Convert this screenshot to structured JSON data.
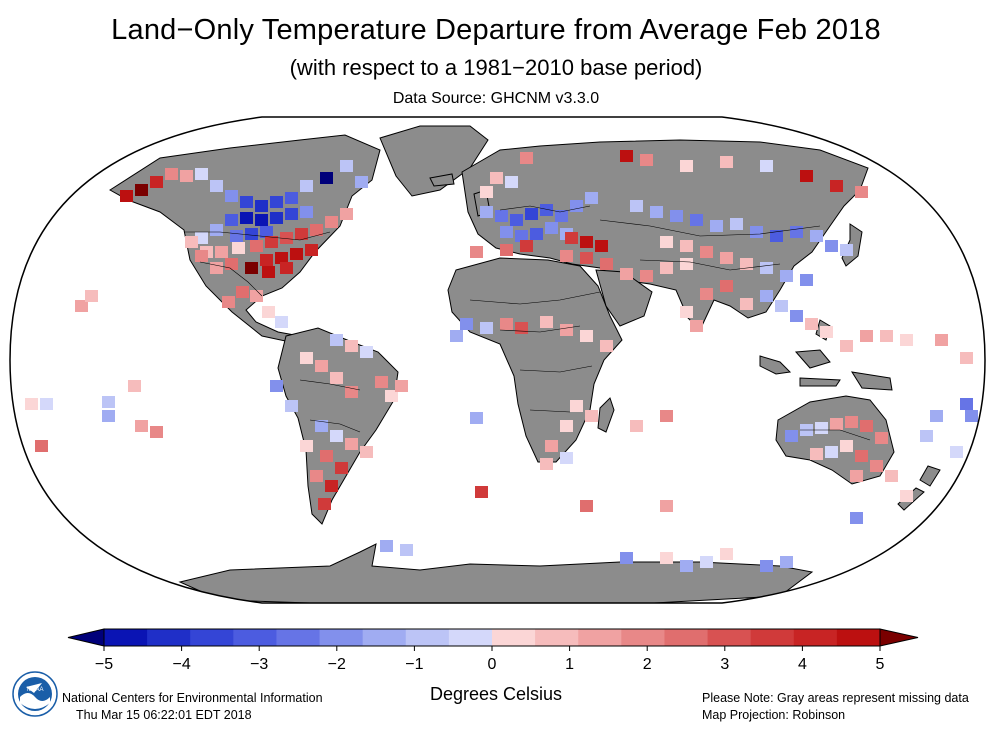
{
  "header": {
    "title": "Land−Only Temperature Departure from Average Feb 2018",
    "subtitle": "(with respect to a 1981−2010 base period)",
    "source": "Data Source: GHCNM v3.3.0"
  },
  "legend": {
    "units": "Degrees Celsius",
    "ticks": [
      "−5",
      "−4",
      "−3",
      "−2",
      "−1",
      "0",
      "1",
      "2",
      "3",
      "4",
      "5"
    ],
    "colors": [
      "#0a14b4",
      "#1f2fc8",
      "#3445d6",
      "#4c5ce0",
      "#6674e6",
      "#8290ec",
      "#a0acf2",
      "#bcc4f6",
      "#d4d8fa",
      "#fbd6d6",
      "#f6bcbc",
      "#f0a2a2",
      "#e88888",
      "#e06e6e",
      "#d85252",
      "#d03a3a",
      "#c82424",
      "#bc1010"
    ],
    "under_color": "#00007a",
    "over_color": "#7a0000"
  },
  "footer": {
    "org": "National Centers for Environmental Information",
    "date": "Thu Mar 15 06:22:01 EDT 2018",
    "note": "Please Note: Gray areas represent missing data",
    "projection": "Map Projection: Robinson"
  },
  "map": {
    "missing_color": "#8c8c8c",
    "ocean_color": "#ffffff"
  }
}
